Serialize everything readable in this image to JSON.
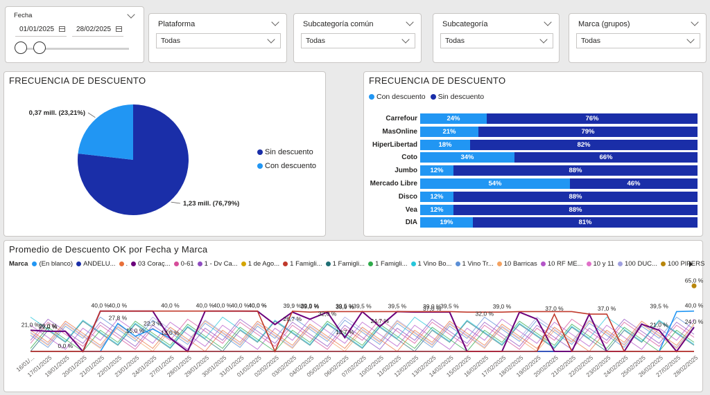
{
  "filters": {
    "date": {
      "title": "Fecha",
      "from": "01/01/2025",
      "to": "28/02/2025"
    },
    "plataforma": {
      "title": "Plataforma",
      "value": "Todas"
    },
    "subcat_comun": {
      "title": "Subcategoría común",
      "value": "Todas"
    },
    "subcategoria": {
      "title": "Subcategoría",
      "value": "Todas"
    },
    "marca": {
      "title": "Marca (grupos)",
      "value": "Todas"
    }
  },
  "colors": {
    "sin": "#1a2ea8",
    "con": "#2196f3"
  },
  "chart_data": [
    {
      "type": "pie",
      "title": "FRECUENCIA DE DESCUENTO",
      "slices": [
        {
          "name": "Sin descuento",
          "value": 1.23,
          "label": "1,23 mill. (76,79%)",
          "pct": 76.79
        },
        {
          "name": "Con descuento",
          "value": 0.37,
          "label": "0,37 mill. (23,21%)",
          "pct": 23.21
        }
      ],
      "legend": [
        "Sin descuento",
        "Con descuento"
      ]
    },
    {
      "type": "bar",
      "orientation": "horizontal-stacked-100",
      "title": "FRECUENCIA DE DESCUENTO",
      "legend": [
        "Con descuento",
        "Sin descuento"
      ],
      "categories": [
        "Carrefour",
        "MasOnline",
        "HiperLibertad",
        "Coto",
        "Jumbo",
        "Mercado Libre",
        "Disco",
        "Vea",
        "DIA"
      ],
      "series": [
        {
          "name": "Con descuento",
          "values": [
            24,
            21,
            18,
            34,
            12,
            54,
            12,
            12,
            19
          ],
          "labels": [
            "24%",
            "21%",
            "18%",
            "34%",
            "12%",
            "54%",
            "12%",
            "12%",
            "19%"
          ]
        },
        {
          "name": "Sin descuento",
          "values": [
            76,
            79,
            82,
            66,
            88,
            46,
            88,
            88,
            81
          ],
          "labels": [
            "76%",
            "79%",
            "82%",
            "66%",
            "88%",
            "46%",
            "88%",
            "88%",
            "81%"
          ]
        }
      ]
    },
    {
      "type": "line",
      "title": "Promedio de Descuento OK por Fecha y Marca",
      "legend_title": "Marca",
      "legend": [
        {
          "name": "(En blanco)",
          "color": "#2196f3"
        },
        {
          "name": "ANDELU...",
          "color": "#1a2ea8"
        },
        {
          "name": ".",
          "color": "#e8703a"
        },
        {
          "name": "03 Coraç...",
          "color": "#6b007b"
        },
        {
          "name": "0-61",
          "color": "#d64d9a"
        },
        {
          "name": "1 - Dv Ca...",
          "color": "#8f4cc0"
        },
        {
          "name": "1 de Ago...",
          "color": "#d4a500"
        },
        {
          "name": "1 Famigli...",
          "color": "#c0392b"
        },
        {
          "name": "1 Famigli...",
          "color": "#1f6e74"
        },
        {
          "name": "1 Famigli...",
          "color": "#2eaa4a"
        },
        {
          "name": "1 Vino Bo...",
          "color": "#26c6da"
        },
        {
          "name": "1 Vino Tr...",
          "color": "#5b8fd6"
        },
        {
          "name": "10 Barricas",
          "color": "#f4a261"
        },
        {
          "name": "10 RF ME...",
          "color": "#b455c8"
        },
        {
          "name": "10 y 11",
          "color": "#e070c8"
        },
        {
          "name": "100 DUC...",
          "color": "#a0a0e0"
        },
        {
          "name": "100 PIPERS",
          "color": "#b8860b"
        }
      ],
      "x": [
        "16/01/...",
        "17/01/2025",
        "19/01/2025",
        "20/01/2025",
        "21/01/2025",
        "22/01/2025",
        "23/01/2025",
        "24/01/2025",
        "27/01/2025",
        "28/01/2025",
        "29/01/2025",
        "30/01/2025",
        "31/01/2025",
        "01/02/2025",
        "02/02/2025",
        "03/02/2025",
        "04/02/2025",
        "05/02/2025",
        "06/02/2025",
        "07/02/2025",
        "10/02/2025",
        "11/02/2025",
        "12/02/2025",
        "13/02/2025",
        "14/02/2025",
        "15/02/2025",
        "16/02/2025",
        "17/02/2025",
        "18/02/2025",
        "19/02/2025",
        "20/02/2025",
        "21/02/2025",
        "22/02/2025",
        "23/02/2025",
        "24/02/2025",
        "25/02/2025",
        "26/02/2025",
        "27/02/2025",
        "28/02/2025"
      ],
      "ylim": [
        0,
        70
      ],
      "series": [
        {
          "name": "(En blanco)",
          "values": [
            0,
            0,
            0,
            0,
            0,
            27.8,
            15.0,
            22.3,
            13.0,
            0,
            0,
            0,
            0,
            0,
            0,
            0,
            0,
            0,
            0,
            0,
            0,
            0,
            0,
            0,
            0,
            0,
            0,
            0,
            0,
            0,
            0,
            0,
            0,
            0,
            0,
            0,
            0,
            39.5,
            40.0
          ]
        },
        {
          "name": "ANDELU...",
          "values": [
            0,
            0,
            0,
            0,
            0,
            0,
            0,
            0,
            0,
            0,
            0,
            0,
            0,
            0,
            0,
            0,
            0,
            0,
            0,
            0,
            0,
            0,
            0,
            0,
            0,
            0,
            0,
            0,
            0,
            0,
            0,
            0,
            0,
            0,
            0,
            0,
            0,
            0,
            0
          ]
        },
        {
          "name": "03 Coraç...",
          "values": [
            21.0,
            20.0,
            20.0,
            0,
            40.0,
            40.0,
            40.0,
            40.0,
            13.0,
            0,
            40.0,
            40.0,
            40.0,
            39.9,
            26.7,
            39.0,
            32.0,
            38.9,
            13.7,
            39.5,
            24.7,
            39.5,
            39.0,
            39.0,
            39.0,
            0,
            0,
            0,
            39.0,
            32.0,
            0,
            0,
            37.0,
            0,
            0,
            27.0,
            21.0,
            0,
            24.0
          ]
        },
        {
          "name": "1 Famigli...",
          "values": [
            0,
            0,
            0,
            0,
            0,
            0,
            0,
            0,
            0,
            0,
            0,
            0,
            0,
            0,
            0,
            0,
            0,
            0,
            0,
            0,
            0,
            0,
            0,
            0,
            0,
            0,
            0,
            0,
            0,
            0,
            37.0,
            0,
            0,
            0,
            0,
            0,
            0,
            0,
            0
          ]
        },
        {
          "name": "1 Famigli...",
          "values": [
            0,
            0,
            0,
            0,
            40.0,
            40.0,
            40.0,
            40.0,
            40.0,
            40.0,
            40.0,
            40.0,
            40.0,
            40.0,
            0,
            39.9,
            39.0,
            39.5,
            39.5,
            39.5,
            39.5,
            39.5,
            39.5,
            39.5,
            39.5,
            39.0,
            39.0,
            39.0,
            39.5,
            39.5,
            39.5,
            39.5,
            37.0,
            37.0,
            0,
            0,
            0,
            0,
            0
          ]
        },
        {
          "name": "100 PIPERS",
          "values": [
            0,
            0,
            0,
            0,
            0,
            0,
            0,
            0,
            0,
            0,
            0,
            0,
            0,
            0,
            0,
            0,
            0,
            0,
            0,
            0,
            0,
            0,
            0,
            0,
            0,
            0,
            0,
            0,
            0,
            0,
            0,
            0,
            0,
            0,
            0,
            0,
            0,
            0,
            65.0
          ]
        }
      ],
      "data_labels": [
        "21,0 %",
        "20,0 %",
        "21,0 %",
        "40,0 %",
        "40,0 %",
        "27,8 %",
        "15,0 %",
        "22,3 %",
        "40,0 %",
        "13,0 %",
        "40,0 %",
        "40,0 %",
        "40,0 %",
        "40,0 %",
        "40,0 %",
        "39,9 %",
        "39,9 %",
        "39,0 %",
        "39,5 %",
        "38,9 %",
        "39,5 %",
        "39,5 %",
        "39,0 %",
        "37,0 %",
        "39,5 %",
        "39,0 %",
        "37,0 %",
        "37,0 %",
        "39,5 %",
        "65,0 %",
        "40,0 %",
        "24,0 %",
        "0,0 %",
        "26,7 %",
        "32,0 %",
        "13,7 %",
        "24,7 %",
        "32,0 %",
        "21,0 %"
      ]
    }
  ]
}
